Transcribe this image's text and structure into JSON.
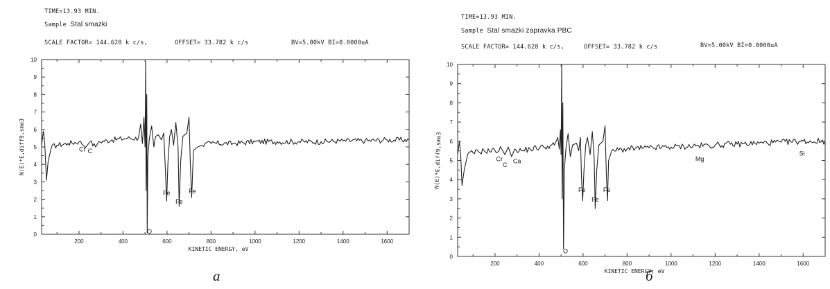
{
  "chart_data": [
    {
      "type": "line",
      "caption": "a",
      "header": {
        "time": "TIME=13.93 MIN.",
        "sample_label": "Sample",
        "sample_name": "Stal smazki",
        "scale": "SCALE FACTOR= 144.628 k c/s,",
        "offset": "OFFSET= 33.782 k c/s",
        "beam": "BV=5.00kV BI=0.0000uA"
      },
      "xlabel": "KINETIC ENERGY, eV",
      "ylabel": "N(E)*E,diff9,smo3",
      "xlim": [
        30,
        1700
      ],
      "ylim": [
        0,
        10
      ],
      "xticks": [
        "200",
        "400",
        "600",
        "800",
        "1000",
        "1200",
        "1400",
        "1600"
      ],
      "yticks": [
        "0",
        "1",
        "2",
        "3",
        "4",
        "5",
        "6",
        "7",
        "8",
        "9",
        "10"
      ],
      "baseline": {
        "start": 5.0,
        "end": 5.4
      },
      "series": [
        {
          "points": [
            [
              30,
              5.1
            ],
            [
              38,
              5.9
            ],
            [
              44,
              5.3
            ],
            [
              52,
              3.1
            ],
            [
              60,
              4.2
            ],
            [
              75,
              5.0
            ],
            [
              100,
              5.1
            ],
            [
              150,
              5.2
            ],
            [
              200,
              5.3
            ],
            [
              235,
              5.05
            ],
            [
              250,
              5.3
            ],
            [
              275,
              5.0
            ],
            [
              290,
              5.3
            ],
            [
              350,
              5.4
            ],
            [
              420,
              5.5
            ],
            [
              470,
              5.5
            ],
            [
              480,
              6.3
            ],
            [
              488,
              5.2
            ],
            [
              495,
              6.7
            ],
            [
              500,
              5.0
            ],
            [
              503,
              9.9
            ],
            [
              505,
              2.5
            ],
            [
              508,
              8.0
            ],
            [
              510,
              0.1
            ],
            [
              513,
              4.5
            ],
            [
              520,
              5.5
            ],
            [
              530,
              6.2
            ],
            [
              540,
              5.0
            ],
            [
              548,
              5.6
            ],
            [
              560,
              5.7
            ],
            [
              575,
              5.4
            ],
            [
              585,
              5.8
            ],
            [
              592,
              3.8
            ],
            [
              598,
              1.9
            ],
            [
              604,
              4.1
            ],
            [
              612,
              5.6
            ],
            [
              620,
              6.0
            ],
            [
              630,
              5.1
            ],
            [
              640,
              6.4
            ],
            [
              650,
              5.0
            ],
            [
              655,
              1.6
            ],
            [
              662,
              4.2
            ],
            [
              672,
              5.6
            ],
            [
              690,
              5.8
            ],
            [
              700,
              6.7
            ],
            [
              706,
              4.0
            ],
            [
              712,
              2.1
            ],
            [
              720,
              4.8
            ],
            [
              740,
              5.0
            ],
            [
              760,
              5.1
            ],
            [
              800,
              5.2
            ],
            [
              900,
              5.2
            ],
            [
              1000,
              5.3
            ],
            [
              1100,
              5.3
            ],
            [
              1200,
              5.3
            ],
            [
              1300,
              5.3
            ],
            [
              1400,
              5.35
            ],
            [
              1500,
              5.35
            ],
            [
              1600,
              5.4
            ],
            [
              1700,
              5.4
            ]
          ]
        }
      ],
      "annotations": [
        {
          "text": "Cr",
          "x": 215,
          "y": 4.9
        },
        {
          "text": "C",
          "x": 250,
          "y": 4.8
        },
        {
          "text": "Fe",
          "x": 598,
          "y": 2.4
        },
        {
          "text": "Fe",
          "x": 655,
          "y": 1.9
        },
        {
          "text": "Fe",
          "x": 715,
          "y": 2.5
        },
        {
          "text": "O",
          "x": 520,
          "y": 0.2
        }
      ]
    },
    {
      "type": "line",
      "caption": "б",
      "header": {
        "time": "TIME=13.93 MIN.",
        "sample_label": "Sample",
        "sample_name": "Stal smazki zapravka PBC",
        "scale": "SCALE FACTOR= 144.628 k c/s,",
        "offset": "OFFSET= 33.782 k c/s",
        "beam": "BV=5.00kV BI=0.0000uA"
      },
      "xlabel": "KINETIC ENERGY, eV",
      "ylabel": "N(E)*E,diff9,smo3",
      "xlim": [
        30,
        1700
      ],
      "ylim": [
        0,
        10
      ],
      "xticks": [
        "200",
        "400",
        "600",
        "800",
        "1000",
        "1200",
        "1400",
        "1600"
      ],
      "yticks": [
        "0",
        "1",
        "2",
        "3",
        "4",
        "5",
        "6",
        "7",
        "8",
        "9",
        "10"
      ],
      "baseline": {
        "start": 5.5,
        "end": 6.0
      },
      "series": [
        {
          "points": [
            [
              30,
              5.3
            ],
            [
              38,
              6.0
            ],
            [
              44,
              5.3
            ],
            [
              50,
              3.7
            ],
            [
              60,
              4.5
            ],
            [
              75,
              5.3
            ],
            [
              100,
              5.4
            ],
            [
              150,
              5.5
            ],
            [
              200,
              5.5
            ],
            [
              230,
              5.6
            ],
            [
              245,
              5.3
            ],
            [
              260,
              5.7
            ],
            [
              275,
              5.2
            ],
            [
              290,
              5.6
            ],
            [
              320,
              5.5
            ],
            [
              360,
              5.6
            ],
            [
              420,
              5.7
            ],
            [
              470,
              5.8
            ],
            [
              485,
              6.2
            ],
            [
              492,
              5.6
            ],
            [
              497,
              6.6
            ],
            [
              500,
              5.3
            ],
            [
              503,
              10.0
            ],
            [
              505,
              3.0
            ],
            [
              508,
              8.0
            ],
            [
              511,
              0.4
            ],
            [
              515,
              4.5
            ],
            [
              522,
              5.6
            ],
            [
              532,
              6.4
            ],
            [
              542,
              5.2
            ],
            [
              552,
              5.8
            ],
            [
              570,
              5.9
            ],
            [
              580,
              5.5
            ],
            [
              588,
              6.2
            ],
            [
              593,
              4.0
            ],
            [
              598,
              2.9
            ],
            [
              604,
              4.5
            ],
            [
              612,
              5.8
            ],
            [
              620,
              6.2
            ],
            [
              632,
              5.3
            ],
            [
              642,
              6.5
            ],
            [
              650,
              5.2
            ],
            [
              655,
              2.5
            ],
            [
              662,
              4.5
            ],
            [
              672,
              5.8
            ],
            [
              690,
              6.0
            ],
            [
              700,
              6.8
            ],
            [
              706,
              4.2
            ],
            [
              711,
              2.9
            ],
            [
              716,
              5.0
            ],
            [
              730,
              5.5
            ],
            [
              800,
              5.6
            ],
            [
              900,
              5.65
            ],
            [
              1000,
              5.7
            ],
            [
              1100,
              5.75
            ],
            [
              1200,
              5.8
            ],
            [
              1300,
              5.85
            ],
            [
              1400,
              5.9
            ],
            [
              1500,
              5.95
            ],
            [
              1600,
              6.0
            ],
            [
              1700,
              6.0
            ]
          ]
        }
      ],
      "annotations": [
        {
          "text": "Cr",
          "x": 220,
          "y": 5.1
        },
        {
          "text": "C",
          "x": 245,
          "y": 4.8
        },
        {
          "text": "Ca",
          "x": 300,
          "y": 5.0
        },
        {
          "text": "Mg",
          "x": 1130,
          "y": 5.1
        },
        {
          "text": "Si",
          "x": 1595,
          "y": 5.4
        },
        {
          "text": "Fe",
          "x": 595,
          "y": 3.5
        },
        {
          "text": "Fe",
          "x": 655,
          "y": 3.0
        },
        {
          "text": "Fe",
          "x": 708,
          "y": 3.5
        },
        {
          "text": "O",
          "x": 520,
          "y": 0.3
        }
      ]
    }
  ]
}
